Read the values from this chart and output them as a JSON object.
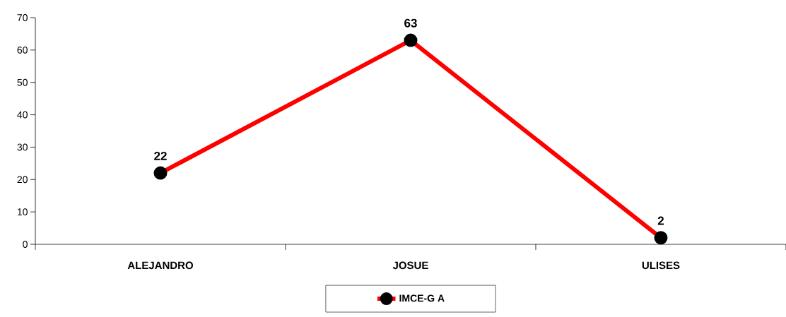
{
  "chart_data": {
    "type": "line",
    "categories": [
      "ALEJANDRO",
      "JOSUE",
      "ULISES"
    ],
    "series": [
      {
        "name": "IMCE-G A",
        "color": "#ff0000",
        "values": [
          22,
          63,
          2
        ]
      }
    ],
    "ylim": [
      0,
      70
    ],
    "yticks": [
      0,
      10,
      20,
      30,
      40,
      50,
      60,
      70
    ],
    "data_labels": true,
    "legend": "bottom",
    "marker": "circle",
    "line_style": "solid",
    "grid": false
  }
}
